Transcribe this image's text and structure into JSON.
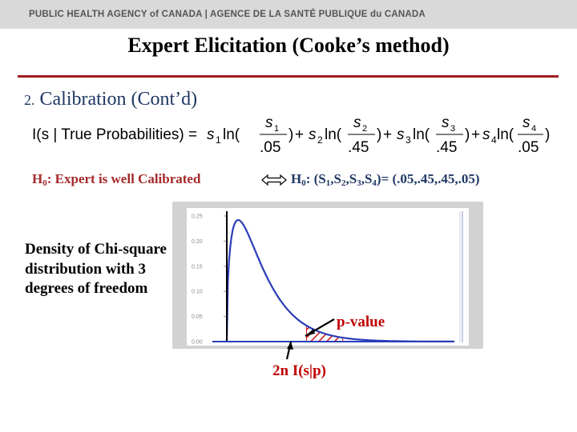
{
  "header": {
    "agency": "PUBLIC HEALTH AGENCY of CANADA | AGENCE DE LA SANTÉ PUBLIQUE du CANADA"
  },
  "title": "Expert Elicitation (Cooke’s method)",
  "section": {
    "number": "2.",
    "label": "Calibration (Cont’d)"
  },
  "formula": {
    "lhs": "I(s | True Probabilities) = ",
    "s": "s",
    "ln": "ln(",
    "close": ")",
    "plus": " + ",
    "subscripts": [
      "1",
      "2",
      "3",
      "4"
    ],
    "denominators": [
      ".05",
      ".45",
      ".45",
      ".05"
    ]
  },
  "hypothesis": {
    "left_prefix": "H",
    "left_sub": "0",
    "left_text": ": Expert is well Calibrated",
    "right_prefix": "H",
    "right_sub": "0",
    "right_a": ": (S",
    "right_b": ",S",
    "right_c": ",S",
    "right_d": ",S",
    "right_e": ")= (.05,.45,.45,.05)",
    "s_subs": [
      "1",
      "2",
      "3",
      "4"
    ]
  },
  "density_text": "Density of Chi-square distribution with 3 degrees of freedom",
  "chart_data": {
    "type": "area",
    "distribution": "chi-square",
    "degrees_of_freedom": 3,
    "xlim": [
      0,
      20
    ],
    "ylim": [
      0,
      0.25
    ],
    "yticks": [
      "0.25",
      "0.20",
      "0.15",
      "0.10",
      "0.05",
      "0.00"
    ],
    "shaded_from": 7,
    "colors": {
      "curve": "#2a3db8",
      "shade": "#d21414",
      "frame": "#d2d2d2"
    }
  },
  "annotations": {
    "pvalue": "p-value",
    "statistic": "2n I(s|p)"
  }
}
